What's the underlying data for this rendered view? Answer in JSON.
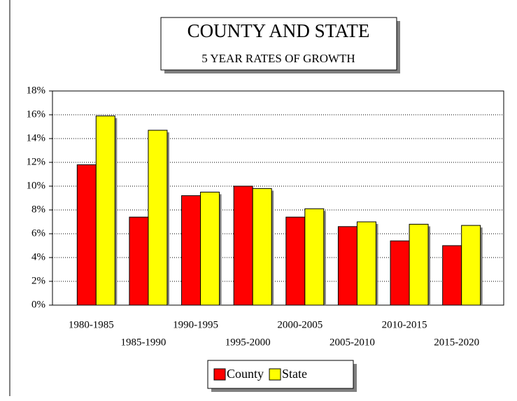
{
  "chart_data": {
    "type": "bar",
    "title": "COUNTY AND STATE",
    "subtitle": "5 YEAR RATES OF GROWTH",
    "categories": [
      "1980-1985",
      "1985-1990",
      "1990-1995",
      "1995-2000",
      "2000-2005",
      "2005-2010",
      "2010-2015",
      "2015-2020"
    ],
    "series": [
      {
        "name": "County",
        "color": "#ff0000",
        "values": [
          11.8,
          7.4,
          9.2,
          10.0,
          7.4,
          6.6,
          5.4,
          5.0
        ]
      },
      {
        "name": "State",
        "color": "#ffff00",
        "values": [
          15.9,
          14.7,
          9.5,
          9.8,
          8.1,
          7.0,
          6.8,
          6.7
        ]
      }
    ],
    "ylim": [
      0,
      18
    ],
    "yticks": [
      {
        "value": 0,
        "label": "0%"
      },
      {
        "value": 2,
        "label": "2%"
      },
      {
        "value": 4,
        "label": "4%"
      },
      {
        "value": 6,
        "label": "6%"
      },
      {
        "value": 8,
        "label": "8%"
      },
      {
        "value": 10,
        "label": "10%"
      },
      {
        "value": 12,
        "label": "12%"
      },
      {
        "value": 14,
        "label": "14%"
      },
      {
        "value": 16,
        "label": "16%"
      },
      {
        "value": 18,
        "label": "18%"
      }
    ],
    "grid": true,
    "legend": "bottom"
  }
}
